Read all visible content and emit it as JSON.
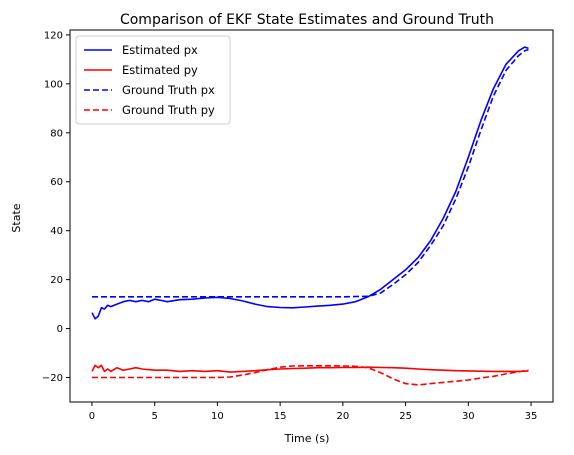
{
  "chart_data": {
    "type": "line",
    "title": "Comparison of EKF State Estimates and Ground Truth",
    "xlabel": "Time (s)",
    "ylabel": "State",
    "xlim": [
      -1.75,
      36.75
    ],
    "ylim": [
      -30,
      122
    ],
    "xticks": [
      0,
      5,
      10,
      15,
      20,
      25,
      30,
      35
    ],
    "yticks": [
      -20,
      0,
      20,
      40,
      60,
      80,
      100,
      120
    ],
    "grid": false,
    "legend": "top-left",
    "series": [
      {
        "name": "Estimated px",
        "color": "#0000ff",
        "style": "solid",
        "points": [
          [
            0,
            6.5
          ],
          [
            0.25,
            4
          ],
          [
            0.5,
            5
          ],
          [
            0.75,
            8.5
          ],
          [
            1,
            8
          ],
          [
            1.25,
            9.5
          ],
          [
            1.5,
            9
          ],
          [
            2,
            10
          ],
          [
            2.5,
            11
          ],
          [
            3,
            11.5
          ],
          [
            3.5,
            11
          ],
          [
            4,
            11.5
          ],
          [
            4.5,
            11
          ],
          [
            5,
            12
          ],
          [
            5.5,
            11.5
          ],
          [
            6,
            11
          ],
          [
            7,
            11.8
          ],
          [
            8,
            12
          ],
          [
            9,
            12.5
          ],
          [
            10,
            12.8
          ],
          [
            11,
            12.3
          ],
          [
            12,
            11.3
          ],
          [
            13,
            10
          ],
          [
            14,
            9
          ],
          [
            15,
            8.6
          ],
          [
            16,
            8.5
          ],
          [
            17,
            8.8
          ],
          [
            18,
            9.2
          ],
          [
            19,
            9.5
          ],
          [
            20,
            10
          ],
          [
            21,
            11
          ],
          [
            22,
            13
          ],
          [
            23,
            16
          ],
          [
            24,
            20
          ],
          [
            25,
            24
          ],
          [
            26,
            29
          ],
          [
            27,
            36
          ],
          [
            28,
            45
          ],
          [
            29,
            56
          ],
          [
            30,
            70
          ],
          [
            31,
            85
          ],
          [
            32,
            98
          ],
          [
            33,
            108
          ],
          [
            34,
            113.5
          ],
          [
            34.5,
            115
          ],
          [
            34.8,
            114.5
          ]
        ]
      },
      {
        "name": "Estimated py",
        "color": "#ff0000",
        "style": "solid",
        "points": [
          [
            0,
            -17.5
          ],
          [
            0.25,
            -15
          ],
          [
            0.5,
            -16
          ],
          [
            0.75,
            -15
          ],
          [
            1,
            -17.5
          ],
          [
            1.25,
            -16.5
          ],
          [
            1.5,
            -17.5
          ],
          [
            2,
            -16
          ],
          [
            2.5,
            -17
          ],
          [
            3,
            -16.5
          ],
          [
            3.5,
            -16
          ],
          [
            4,
            -16.5
          ],
          [
            5,
            -17
          ],
          [
            6,
            -17
          ],
          [
            7,
            -17.5
          ],
          [
            8,
            -17.2
          ],
          [
            9,
            -17.5
          ],
          [
            10,
            -17.2
          ],
          [
            11,
            -17.8
          ],
          [
            12,
            -17.5
          ],
          [
            13,
            -17.2
          ],
          [
            14,
            -16.8
          ],
          [
            15,
            -16.5
          ],
          [
            16,
            -16.3
          ],
          [
            17,
            -16.2
          ],
          [
            18,
            -16
          ],
          [
            19,
            -16
          ],
          [
            20,
            -15.9
          ],
          [
            21,
            -15.9
          ],
          [
            22,
            -15.8
          ],
          [
            23,
            -15.9
          ],
          [
            24,
            -16
          ],
          [
            25,
            -16.2
          ],
          [
            26,
            -16.5
          ],
          [
            27,
            -16.8
          ],
          [
            28,
            -17
          ],
          [
            29,
            -17.2
          ],
          [
            30,
            -17.3
          ],
          [
            31,
            -17.4
          ],
          [
            32,
            -17.5
          ],
          [
            33,
            -17.5
          ],
          [
            34,
            -17.5
          ],
          [
            34.8,
            -17.3
          ]
        ]
      },
      {
        "name": "Ground Truth px",
        "color": "#0000ff",
        "style": "dashed",
        "points": [
          [
            0,
            13
          ],
          [
            5,
            13
          ],
          [
            10,
            13
          ],
          [
            15,
            13
          ],
          [
            20,
            13
          ],
          [
            22,
            13.2
          ],
          [
            23,
            14.5
          ],
          [
            24,
            18
          ],
          [
            25,
            22
          ],
          [
            26,
            27
          ],
          [
            27,
            34
          ],
          [
            28,
            42
          ],
          [
            29,
            53
          ],
          [
            30,
            66
          ],
          [
            31,
            81
          ],
          [
            32,
            95
          ],
          [
            33,
            105.5
          ],
          [
            34,
            111.5
          ],
          [
            34.5,
            113.5
          ],
          [
            34.8,
            114
          ]
        ]
      },
      {
        "name": "Ground Truth py",
        "color": "#ff0000",
        "style": "dashed",
        "points": [
          [
            0,
            -20
          ],
          [
            5,
            -20
          ],
          [
            10,
            -20
          ],
          [
            11,
            -19.8
          ],
          [
            12,
            -19
          ],
          [
            13,
            -18
          ],
          [
            14,
            -16.8
          ],
          [
            15,
            -15.8
          ],
          [
            16,
            -15.3
          ],
          [
            17,
            -15.2
          ],
          [
            18,
            -15.2
          ],
          [
            19,
            -15.2
          ],
          [
            20,
            -15.3
          ],
          [
            21,
            -15.4
          ],
          [
            22,
            -16
          ],
          [
            23,
            -18
          ],
          [
            24,
            -20.5
          ],
          [
            25,
            -22.5
          ],
          [
            26,
            -23
          ],
          [
            27,
            -22.5
          ],
          [
            28,
            -22
          ],
          [
            29,
            -21.5
          ],
          [
            30,
            -21
          ],
          [
            31,
            -20.2
          ],
          [
            32,
            -19.5
          ],
          [
            33,
            -18.5
          ],
          [
            34,
            -17.6
          ],
          [
            34.8,
            -17
          ]
        ]
      }
    ]
  }
}
